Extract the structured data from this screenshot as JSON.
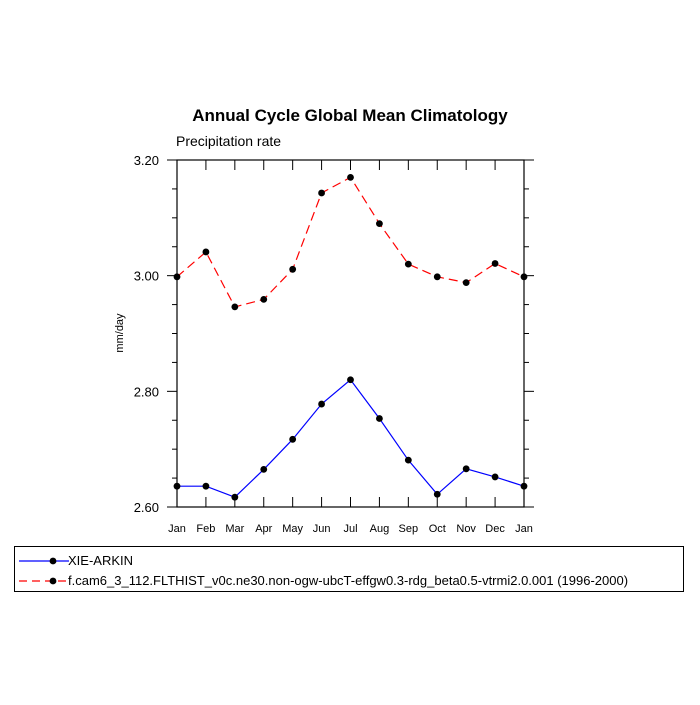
{
  "chart_data": {
    "type": "line",
    "title": "Annual Cycle Global Mean Climatology",
    "subtitle": "Precipitation rate",
    "xlabel": "",
    "ylabel": "mm/day",
    "categories": [
      "Jan",
      "Feb",
      "Mar",
      "Apr",
      "May",
      "Jun",
      "Jul",
      "Aug",
      "Sep",
      "Oct",
      "Nov",
      "Dec",
      "Jan"
    ],
    "ylim": [
      2.6,
      3.2
    ],
    "yticks": [
      2.6,
      2.8,
      3.0,
      3.2
    ],
    "ytick_labels": [
      "2.60",
      "2.80",
      "3.00",
      "3.20"
    ],
    "grid": false,
    "legend_position": "bottom",
    "series": [
      {
        "name": "XIE-ARKIN",
        "color": "#0000ff",
        "dash": "solid",
        "values": [
          2.636,
          2.636,
          2.617,
          2.665,
          2.717,
          2.778,
          2.82,
          2.753,
          2.681,
          2.622,
          2.666,
          2.652,
          2.636
        ]
      },
      {
        "name": "f.cam6_3_112.FLTHIST_v0c.ne30.non-ogw-ubcT-effgw0.3-rdg_beta0.5-vtrmi2.0.001 (1996-2000)",
        "color": "#ff0000",
        "dash": "dashed",
        "values": [
          2.998,
          3.041,
          2.946,
          2.959,
          3.011,
          3.143,
          3.17,
          3.09,
          3.02,
          2.998,
          2.988,
          3.021,
          2.998
        ]
      }
    ]
  }
}
